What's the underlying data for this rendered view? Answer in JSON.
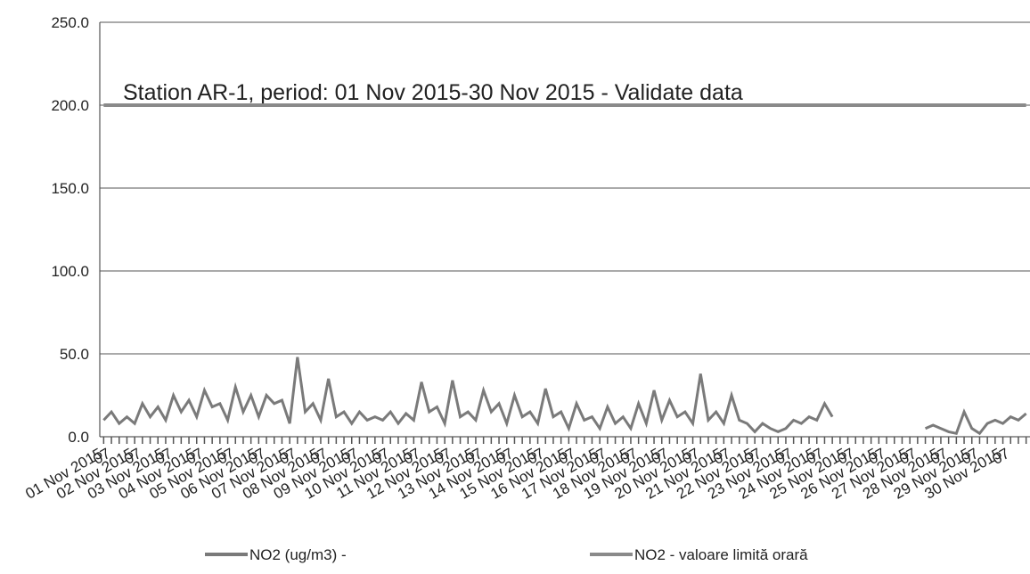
{
  "chart_data": {
    "type": "line",
    "title": "Station AR-1, period: 01 Nov 2015-30 Nov 2015 - Validate data",
    "categories": [
      "01 Nov 2015",
      "07",
      null,
      null,
      "02 Nov 2015",
      "07",
      null,
      null,
      "03 Nov 2015",
      "07",
      null,
      null,
      "04 Nov 2015",
      "07",
      null,
      null,
      "05 Nov 2015",
      "07",
      null,
      null,
      "06 Nov 2015",
      "07",
      null,
      null,
      "07 Nov 2015",
      "07",
      null,
      null,
      "08 Nov 2015",
      "07",
      null,
      null,
      "09 Nov 2015",
      "07",
      null,
      null,
      "10 Nov 2015",
      "07",
      null,
      null,
      "11 Nov 2015",
      "07",
      null,
      null,
      "12 Nov 2015",
      "07",
      null,
      null,
      "13 Nov 2015",
      "07",
      null,
      null,
      "14 Nov 2015",
      "07",
      null,
      null,
      "15 Nov 2015",
      "07",
      null,
      null,
      "16 Nov 2015",
      "07",
      null,
      null,
      "17 Nov 2015",
      "07",
      null,
      null,
      "18 Nov 2015",
      "07",
      null,
      null,
      "19 Nov 2015",
      "07",
      null,
      null,
      "20 Nov 2015",
      "07",
      null,
      null,
      "21 Nov 2015",
      "07",
      null,
      null,
      "22 Nov 2015",
      "07",
      null,
      null,
      "23 Nov 2015",
      "07",
      null,
      null,
      "24 Nov 2015",
      "07",
      null,
      null,
      "25 Nov 2015",
      "07",
      null,
      null,
      "26 Nov 2015",
      "07",
      null,
      null,
      "27 Nov 2015",
      "07",
      null,
      null,
      "28 Nov 2015",
      "07",
      null,
      null,
      "29 Nov 2015",
      "07",
      null,
      null,
      "30 Nov 2015",
      "07",
      null,
      null
    ],
    "series": [
      {
        "name": "NO2 (ug/m3)  -",
        "color": "#7a7a7a",
        "values": [
          10,
          15,
          8,
          12,
          8,
          20,
          12,
          18,
          10,
          25,
          15,
          22,
          12,
          28,
          18,
          20,
          10,
          30,
          15,
          25,
          12,
          25,
          20,
          22,
          8,
          48,
          15,
          20,
          10,
          35,
          12,
          15,
          8,
          15,
          10,
          12,
          10,
          15,
          8,
          14,
          10,
          33,
          15,
          18,
          8,
          34,
          12,
          15,
          10,
          28,
          15,
          20,
          8,
          25,
          12,
          15,
          8,
          29,
          12,
          15,
          5,
          20,
          10,
          12,
          5,
          18,
          8,
          12,
          5,
          20,
          8,
          28,
          10,
          22,
          12,
          15,
          8,
          38,
          10,
          15,
          8,
          25,
          10,
          8,
          3,
          8,
          5,
          3,
          5,
          10,
          8,
          12,
          10,
          20,
          12,
          null,
          null,
          null,
          null,
          null,
          null,
          null,
          null,
          null,
          null,
          null,
          5,
          7,
          5,
          3,
          2,
          15,
          5,
          2,
          8,
          10,
          8,
          12,
          10,
          14
        ]
      },
      {
        "name": "NO2 - valoare limită orară",
        "color": "#8a8a8a",
        "values": [
          200,
          200,
          200,
          200,
          200,
          200,
          200,
          200,
          200,
          200,
          200,
          200,
          200,
          200,
          200,
          200,
          200,
          200,
          200,
          200,
          200,
          200,
          200,
          200,
          200,
          200,
          200,
          200,
          200,
          200,
          200,
          200,
          200,
          200,
          200,
          200,
          200,
          200,
          200,
          200,
          200,
          200,
          200,
          200,
          200,
          200,
          200,
          200,
          200,
          200,
          200,
          200,
          200,
          200,
          200,
          200,
          200,
          200,
          200,
          200,
          200,
          200,
          200,
          200,
          200,
          200,
          200,
          200,
          200,
          200,
          200,
          200,
          200,
          200,
          200,
          200,
          200,
          200,
          200,
          200,
          200,
          200,
          200,
          200,
          200,
          200,
          200,
          200,
          200,
          200,
          200,
          200,
          200,
          200,
          200,
          200,
          200,
          200,
          200,
          200,
          200,
          200,
          200,
          200,
          200,
          200,
          200,
          200,
          200,
          200,
          200,
          200,
          200,
          200,
          200,
          200,
          200,
          200,
          200,
          200
        ]
      }
    ],
    "ylim": [
      0,
      250
    ],
    "yticks": [
      {
        "value": 0,
        "label": "0.0"
      },
      {
        "value": 50,
        "label": "50.0"
      },
      {
        "value": 100,
        "label": "100.0"
      },
      {
        "value": 150,
        "label": "150.0"
      },
      {
        "value": 200,
        "label": "200.0"
      },
      {
        "value": 250,
        "label": "250.0"
      }
    ],
    "grid": true
  }
}
